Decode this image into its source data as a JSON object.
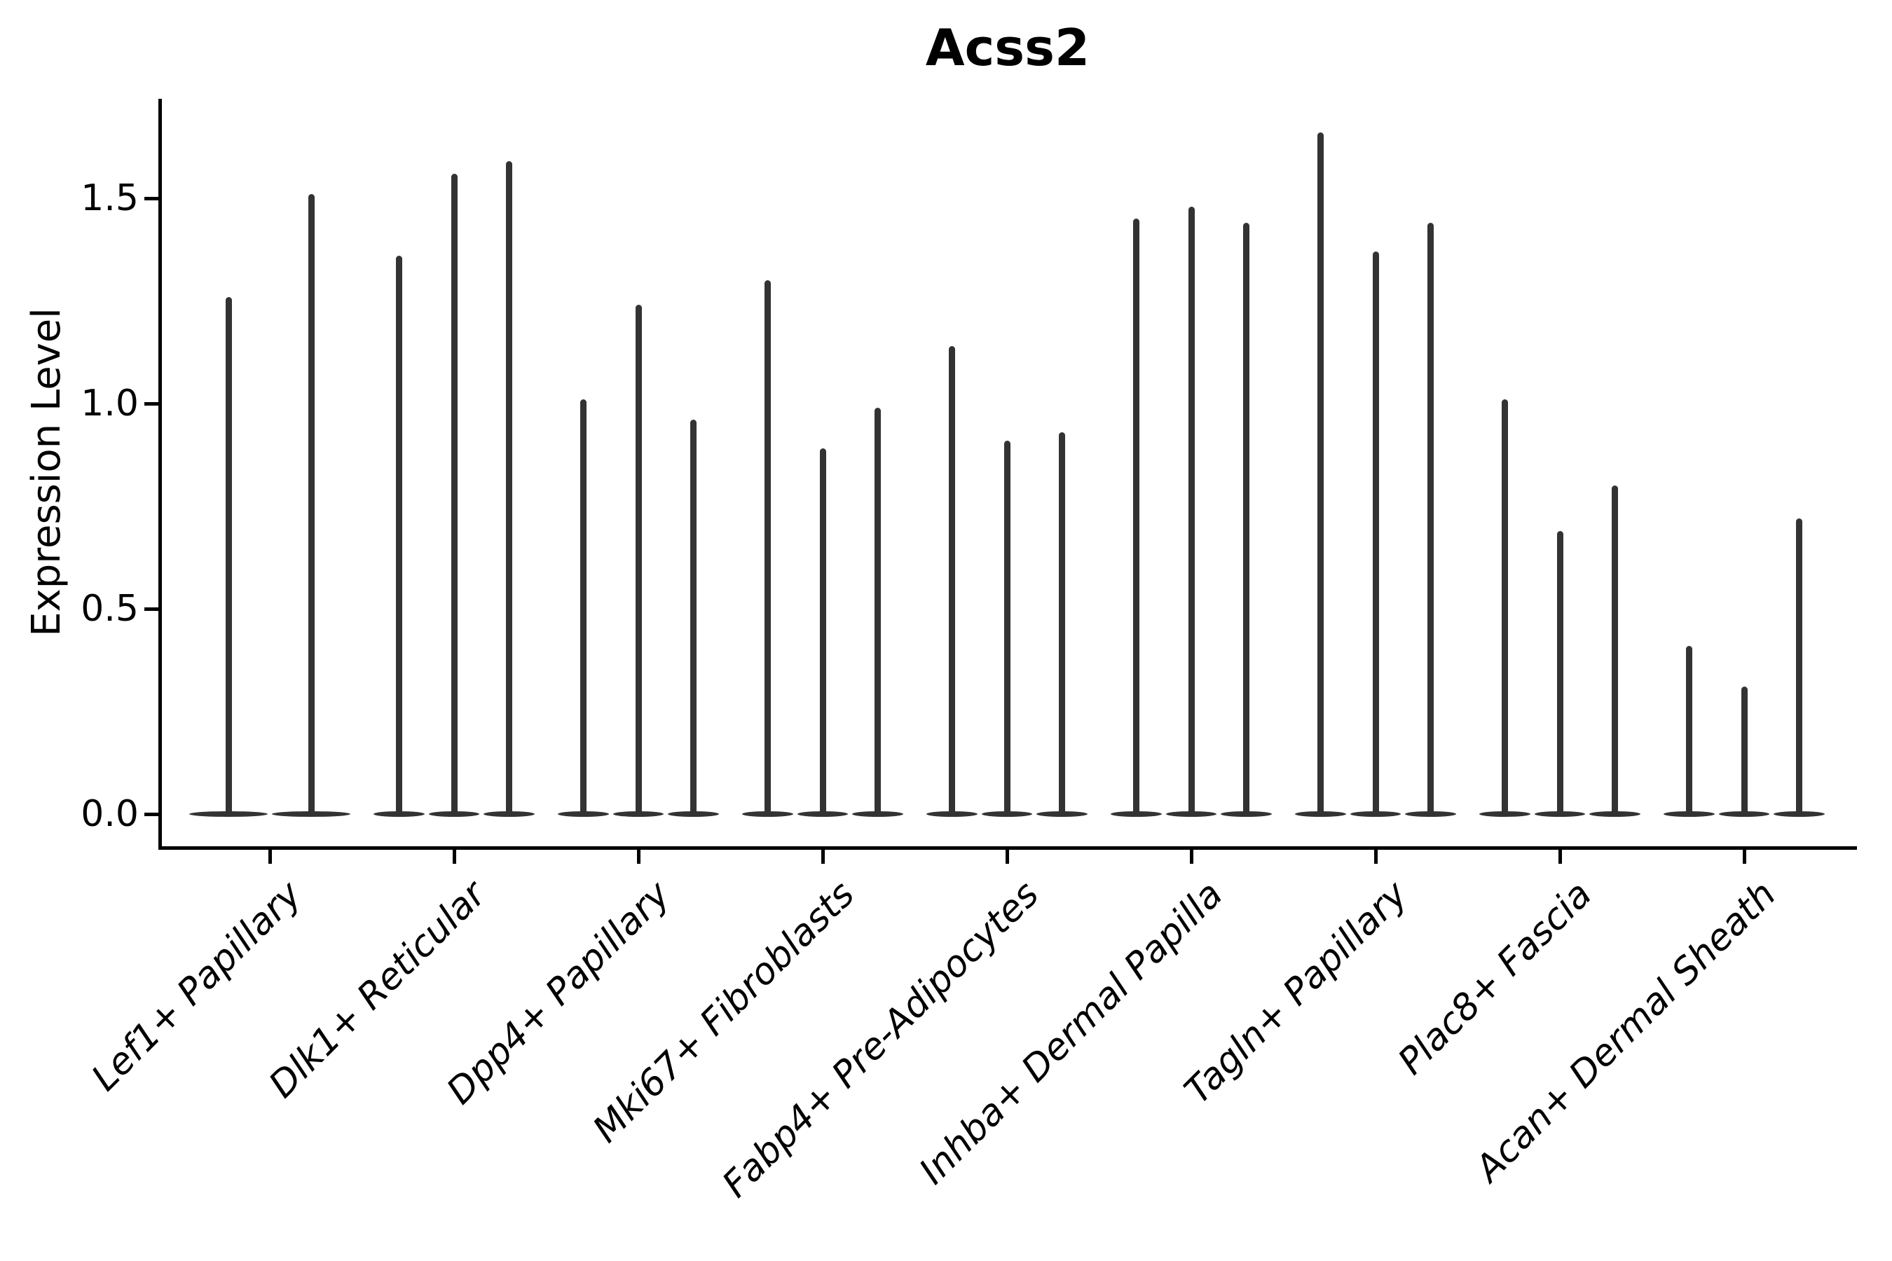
{
  "title": "Acss2",
  "y_axis": {
    "label": "Expression Level",
    "tick_labels": [
      "0.0",
      "0.5",
      "1.0",
      "1.5"
    ]
  },
  "chart_data": {
    "type": "violin",
    "title": "Acss2",
    "xlabel": "",
    "ylabel": "Expression Level",
    "ylim": [
      -0.08,
      1.74
    ],
    "yticks": [
      0.0,
      0.5,
      1.0,
      1.5
    ],
    "grid": false,
    "legend_position": "none",
    "baseline_value": 0.0,
    "description": "Needle-thin violins: bulk of density at 0 with a thin spike up to each violin's maximum expression value",
    "categories": [
      "Lef1+ Papillary",
      "Dlk1+ Reticular",
      "Dpp4+ Papillary",
      "Mki67+ Fibroblasts",
      "Fabp4+ Pre-Adipocytes",
      "Inhba+ Dermal Papilla",
      "Tagln+ Papillary",
      "Plac8+ Fascia",
      "Acan+ Dermal Sheath"
    ],
    "groups": [
      {
        "category": "Lef1+ Papillary",
        "violin_peaks": [
          1.26,
          1.51
        ]
      },
      {
        "category": "Dlk1+ Reticular",
        "violin_peaks": [
          1.36,
          1.56,
          1.59
        ]
      },
      {
        "category": "Dpp4+ Papillary",
        "violin_peaks": [
          1.01,
          1.24,
          0.96
        ]
      },
      {
        "category": "Mki67+ Fibroblasts",
        "violin_peaks": [
          1.3,
          0.89,
          0.99
        ]
      },
      {
        "category": "Fabp4+ Pre-Adipocytes",
        "violin_peaks": [
          1.14,
          0.91,
          0.93
        ]
      },
      {
        "category": "Inhba+ Dermal Papilla",
        "violin_peaks": [
          1.45,
          1.48,
          1.44
        ]
      },
      {
        "category": "Tagln+ Papillary",
        "violin_peaks": [
          1.66,
          1.37,
          1.44
        ]
      },
      {
        "category": "Plac8+ Fascia",
        "violin_peaks": [
          1.01,
          0.69,
          0.8
        ]
      },
      {
        "category": "Acan+ Dermal Sheath",
        "violin_peaks": [
          0.41,
          0.31,
          0.72
        ]
      }
    ],
    "colors": {
      "violin": "#333333",
      "axis": "#000000",
      "text": "#000000",
      "background": "#ffffff"
    }
  }
}
